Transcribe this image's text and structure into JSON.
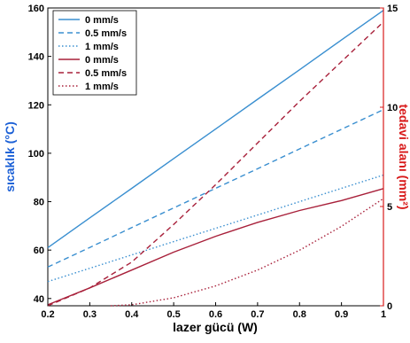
{
  "chart_data": {
    "type": "line",
    "title": "",
    "xlabel": "lazer gücü (W)",
    "ylabel_left": "sıcaklık (°C)",
    "ylabel_right": "tedavi alanı (mm²)",
    "xlim": [
      0.2,
      1.0
    ],
    "ylim_left": [
      37,
      160
    ],
    "ylim_right": [
      0,
      15
    ],
    "x_ticks": [
      "0.2",
      "0.3",
      "0.4",
      "0.5",
      "0.6",
      "0.7",
      "0.8",
      "0.9",
      "1"
    ],
    "y_left_ticks": [
      "40",
      "60",
      "80",
      "100",
      "120",
      "140",
      "160"
    ],
    "y_right_ticks": [
      "0",
      "5",
      "10",
      "15"
    ],
    "grid": false,
    "legend_position": "top-left",
    "colors": {
      "left_axis": "#1a5fd6",
      "right_axis": "#d81b1b",
      "blue_series": "#3a8fd0",
      "red_series": "#a8203a"
    },
    "series": [
      {
        "name": "0 mm/s",
        "axis": "left",
        "style": "solid",
        "color": "#3a8fd0",
        "x": [
          0.2,
          0.3,
          0.4,
          0.5,
          0.6,
          0.7,
          0.8,
          0.9,
          1.0
        ],
        "y": [
          61,
          73.3,
          85.5,
          97.8,
          110,
          122.3,
          134.5,
          146.8,
          159
        ]
      },
      {
        "name": "0.5 mm/s",
        "axis": "left",
        "style": "dashed",
        "color": "#3a8fd0",
        "x": [
          0.2,
          0.3,
          0.4,
          0.5,
          0.6,
          0.7,
          0.8,
          0.9,
          1.0
        ],
        "y": [
          53,
          61.1,
          69.3,
          77.4,
          85.5,
          93.6,
          101.8,
          109.9,
          118
        ]
      },
      {
        "name": "1 mm/s",
        "axis": "left",
        "style": "dotted",
        "color": "#3a8fd0",
        "x": [
          0.2,
          0.3,
          0.4,
          0.5,
          0.6,
          0.7,
          0.8,
          0.9,
          1.0
        ],
        "y": [
          47,
          52.5,
          58,
          63.5,
          69,
          74.5,
          80,
          85.5,
          91
        ]
      },
      {
        "name": "0 mm/s",
        "axis": "right",
        "style": "solid",
        "color": "#a8203a",
        "x": [
          0.2,
          0.3,
          0.4,
          0.5,
          0.6,
          0.7,
          0.8,
          0.9,
          1.0
        ],
        "y": [
          0.05,
          0.9,
          1.8,
          2.7,
          3.5,
          4.2,
          4.8,
          5.3,
          5.9
        ]
      },
      {
        "name": "0.5 mm/s",
        "axis": "right",
        "style": "dashed",
        "color": "#a8203a",
        "x": [
          0.2,
          0.3,
          0.4,
          0.5,
          0.6,
          0.7,
          0.8,
          0.9,
          1.0
        ],
        "y": [
          0.0,
          0.9,
          2.2,
          4.1,
          6.1,
          8.2,
          10.3,
          12.3,
          14.3
        ]
      },
      {
        "name": "1 mm/s",
        "axis": "right",
        "style": "dotted",
        "color": "#a8203a",
        "x": [
          0.35,
          0.4,
          0.5,
          0.6,
          0.7,
          0.8,
          0.9,
          1.0
        ],
        "y": [
          0.0,
          0.05,
          0.4,
          1.0,
          1.8,
          2.8,
          4.0,
          5.4
        ]
      }
    ]
  }
}
